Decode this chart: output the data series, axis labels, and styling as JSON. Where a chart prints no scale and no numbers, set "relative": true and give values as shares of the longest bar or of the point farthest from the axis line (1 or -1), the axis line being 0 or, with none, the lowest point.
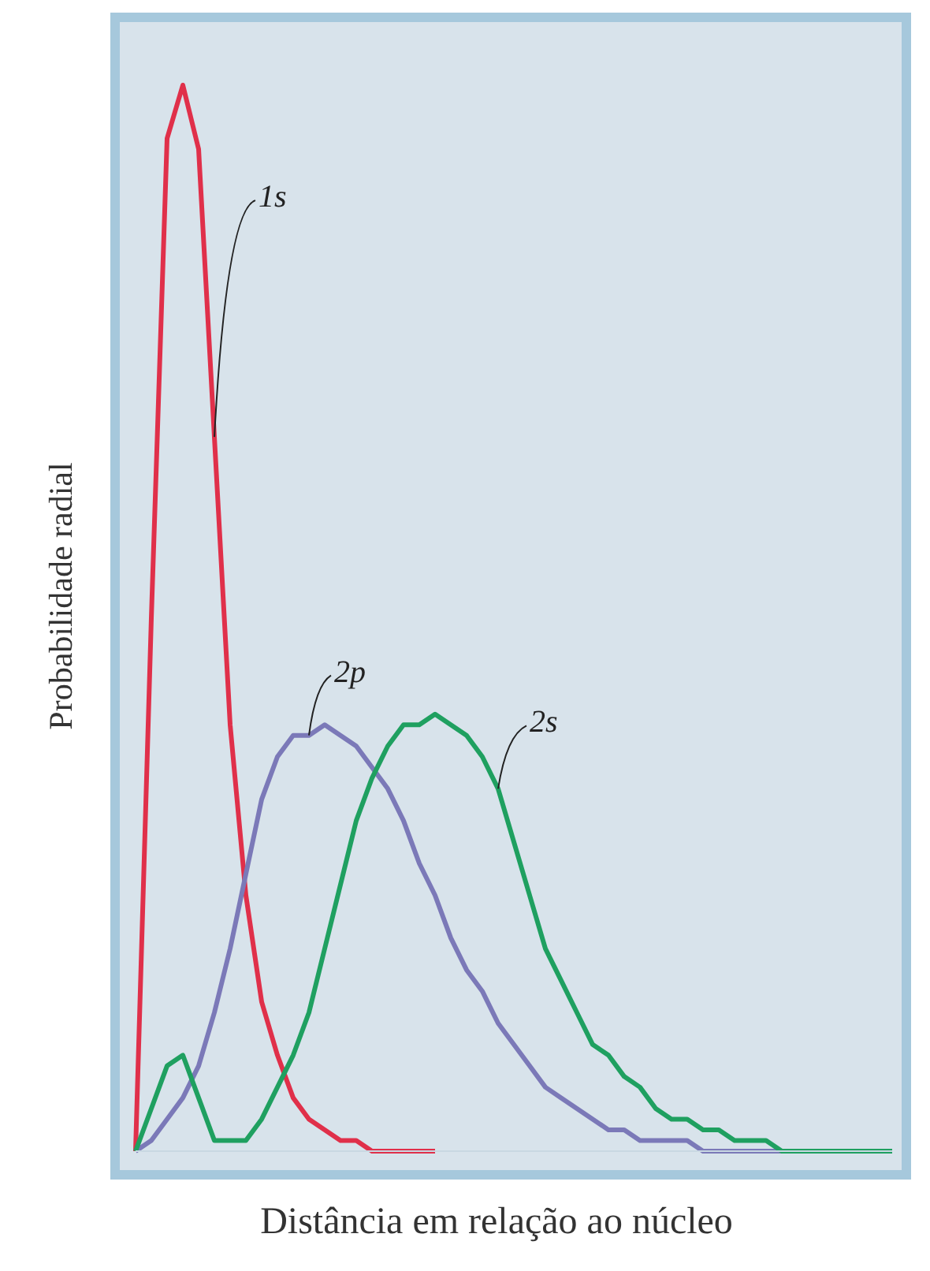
{
  "chart_data": {
    "type": "line",
    "relative": true,
    "xlabel": "Distância em relação ao núcleo",
    "ylabel": "Probabilidade radial",
    "categories": [
      null,
      null,
      null,
      null,
      null,
      null,
      null,
      null,
      null,
      null,
      null,
      null,
      null,
      null,
      null,
      null,
      null,
      null,
      null,
      null,
      null,
      null,
      null,
      null,
      null,
      null,
      null,
      null,
      null,
      null,
      null,
      null,
      null,
      null,
      null,
      null,
      null,
      null,
      null,
      null,
      null,
      null,
      null,
      null,
      null,
      null,
      null,
      null,
      null
    ],
    "series": [
      {
        "name": "1s",
        "color": "#e0304a",
        "values": [
          0,
          0.5,
          0.95,
          1,
          0.94,
          0.67,
          0.4,
          0.24,
          0.14,
          0.09,
          0.05,
          0.03,
          0.02,
          0.01,
          0.01,
          0,
          0,
          0,
          0,
          0,
          null,
          null,
          null,
          null,
          null,
          null,
          null,
          null,
          null,
          null,
          null,
          null,
          null,
          null,
          null,
          null,
          null,
          null,
          null,
          null,
          null,
          null,
          null,
          null,
          null,
          null,
          null,
          null,
          null
        ]
      },
      {
        "name": "2p",
        "color": "#7b79b8",
        "values": [
          0,
          0.01,
          0.03,
          0.05,
          0.08,
          0.13,
          0.19,
          0.26,
          0.33,
          0.37,
          0.39,
          0.39,
          0.4,
          0.39,
          0.38,
          0.36,
          0.34,
          0.31,
          0.27,
          0.24,
          0.2,
          0.17,
          0.15,
          0.12,
          0.1,
          0.08,
          0.06,
          0.05,
          0.04,
          0.03,
          0.02,
          0.02,
          0.01,
          0.01,
          0.01,
          0.01,
          0,
          0,
          0,
          0,
          0,
          0,
          0,
          null,
          null,
          null,
          null,
          null,
          null
        ]
      },
      {
        "name": "2s",
        "color": "#1fa060",
        "values": [
          0,
          0.04,
          0.08,
          0.09,
          0.05,
          0.01,
          0.01,
          0.01,
          0.03,
          0.06,
          0.09,
          0.13,
          0.19,
          0.25,
          0.31,
          0.35,
          0.38,
          0.4,
          0.4,
          0.41,
          0.4,
          0.39,
          0.37,
          0.34,
          0.29,
          0.24,
          0.19,
          0.16,
          0.13,
          0.1,
          0.09,
          0.07,
          0.06,
          0.04,
          0.03,
          0.03,
          0.02,
          0.02,
          0.01,
          0.01,
          0.01,
          0,
          0,
          0,
          0,
          0,
          0,
          0,
          0
        ]
      }
    ]
  }
}
